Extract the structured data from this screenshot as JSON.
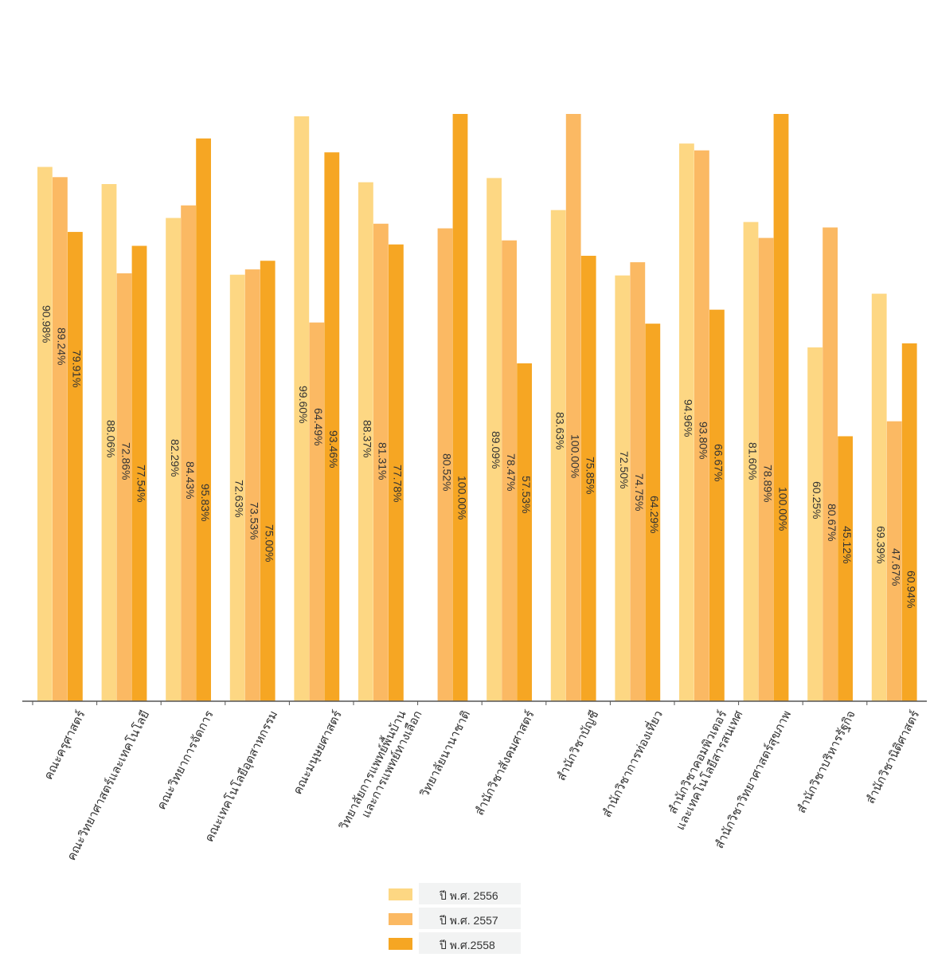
{
  "chart_data": {
    "type": "bar",
    "title": "",
    "xlabel": "",
    "ylabel": "",
    "ylim": [
      0,
      100
    ],
    "grid": false,
    "legend_position": "bottom-center",
    "categories": [
      "คณะครุศาสตร์",
      "คณะวิทยาศาสตร์และเทคโนโลยี",
      "คณะวิทยาการจัดการ",
      "คณะเทคโนโลยีอุตสาหกรรม",
      "คณะมนุษยศาสตร์",
      "วิทยาลัยการแพทย์พื้นบ้าน\nและการแพทย์ทางเลือก",
      "วิทยาลัยนานาชาติ",
      "สำนักวิชาสังคมศาสตร์",
      "สำนักวิชาบัญชี",
      "สำนักวิชาการท่องเที่ยว",
      "สำนักวิชาคอมพิวเตอร์\nและเทคโนโลยีสารสนเทศ",
      "สำนักวิชาวิทยาศาสตร์สุขภาพ",
      "สำนักวิชาบริหารรัฐกิจ",
      "สำนักวิชานิติศาสตร์"
    ],
    "series": [
      {
        "name": "ปี พ.ศ. 2556",
        "color": "#fdd783",
        "values": [
          90.98,
          88.06,
          82.29,
          72.63,
          99.6,
          88.37,
          null,
          89.09,
          83.63,
          72.5,
          94.96,
          81.6,
          60.25,
          69.39
        ],
        "labels": [
          "90.98%",
          "88.06%",
          "82.29%",
          "72.63%",
          "99.60%",
          "88.37%",
          "",
          "89.09%",
          "83.63%",
          "72.50%",
          "94.96%",
          "81.60%",
          "60.25%",
          "69.39%"
        ]
      },
      {
        "name": "ปี พ.ศ. 2557",
        "color": "#fbb963",
        "values": [
          89.24,
          72.86,
          84.43,
          73.53,
          64.49,
          81.31,
          80.52,
          78.47,
          100.0,
          74.75,
          93.8,
          78.89,
          80.67,
          47.67
        ],
        "labels": [
          "89.24%",
          "72.86%",
          "84.43%",
          "73.53%",
          "64.49%",
          "81.31%",
          "80.52%",
          "78.47%",
          "100.00%",
          "74.75%",
          "93.80%",
          "78.89%",
          "80.67%",
          "47.67%"
        ]
      },
      {
        "name": "ปี พ.ศ.2558",
        "color": "#f6a623",
        "values": [
          79.91,
          77.54,
          95.83,
          75.0,
          93.46,
          77.78,
          100.0,
          57.53,
          75.85,
          64.29,
          66.67,
          100.0,
          45.12,
          60.94
        ],
        "labels": [
          "79.91%",
          "77.54%",
          "95.83%",
          "75.00%",
          "93.46%",
          "77.78%",
          "100.00%",
          "57.53%",
          "75.85%",
          "64.29%",
          "66.67%",
          "100.00%",
          "45.12%",
          "60.94%"
        ]
      }
    ]
  }
}
